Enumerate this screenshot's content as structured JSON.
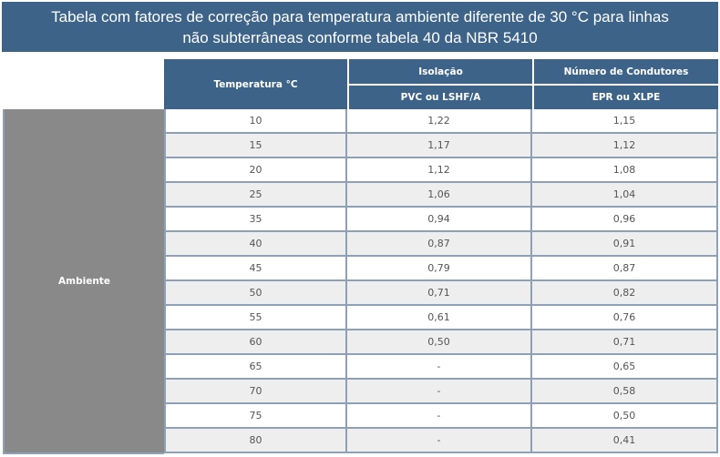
{
  "title": {
    "line1": "Tabela com fatores de correção para temperatura ambiente diferente de 30 °C para linhas",
    "line2": "não subterrâneas conforme tabela 40 da NBR 5410"
  },
  "header": {
    "temperature": "Temperatura °C",
    "isolation": "Isolação",
    "conductors": "Número de Condutores",
    "pvc": "PVC ou LSHF/A",
    "epr": "EPR ou XLPE"
  },
  "side_label": "Ambiente",
  "rows": [
    {
      "temp": "10",
      "pvc": "1,22",
      "epr": "1,15"
    },
    {
      "temp": "15",
      "pvc": "1,17",
      "epr": "1,12"
    },
    {
      "temp": "20",
      "pvc": "1,12",
      "epr": "1,08"
    },
    {
      "temp": "25",
      "pvc": "1,06",
      "epr": "1,04"
    },
    {
      "temp": "35",
      "pvc": "0,94",
      "epr": "0,96"
    },
    {
      "temp": "40",
      "pvc": "0,87",
      "epr": "0,91"
    },
    {
      "temp": "45",
      "pvc": "0,79",
      "epr": "0,87"
    },
    {
      "temp": "50",
      "pvc": "0,71",
      "epr": "0,82"
    },
    {
      "temp": "55",
      "pvc": "0,61",
      "epr": "0,76"
    },
    {
      "temp": "60",
      "pvc": "0,50",
      "epr": "0,71"
    },
    {
      "temp": "65",
      "pvc": "-",
      "epr": "0,65"
    },
    {
      "temp": "70",
      "pvc": "-",
      "epr": "0,58"
    },
    {
      "temp": "75",
      "pvc": "-",
      "epr": "0,50"
    },
    {
      "temp": "80",
      "pvc": "-",
      "epr": "0,41"
    }
  ],
  "colors": {
    "header_blue": "#3d6389",
    "ambient_gray": "#898989",
    "border": "#8da0b8",
    "row_alt": "#eeeeee"
  }
}
